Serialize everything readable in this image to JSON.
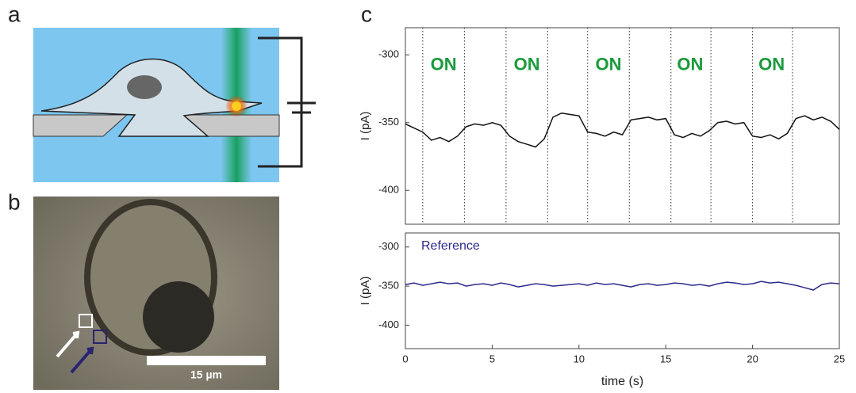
{
  "panel_labels": [
    "a",
    "b",
    "c"
  ],
  "scale_bar": "15 µm",
  "chart_data": [
    {
      "type": "line",
      "ylabel": "I (pA)",
      "xlim": [
        0,
        25
      ],
      "ylim": [
        -425,
        -280
      ],
      "yticks": [
        -400,
        -350,
        -300
      ],
      "x": [
        0,
        0.5,
        1,
        1.5,
        2,
        2.5,
        3,
        3.5,
        4,
        4.5,
        5,
        5.5,
        6,
        6.5,
        7,
        7.5,
        8,
        8.5,
        9,
        9.5,
        10,
        10.5,
        11,
        11.5,
        12,
        12.5,
        13,
        13.5,
        14,
        14.5,
        15,
        15.5,
        16,
        16.5,
        17,
        17.5,
        18,
        18.5,
        19,
        19.5,
        20,
        20.5,
        21,
        21.5,
        22,
        22.5,
        23,
        23.5,
        24,
        24.5,
        25
      ],
      "series": [
        {
          "color": "#111111",
          "values": [
            -351,
            -354,
            -357,
            -363,
            -361,
            -364,
            -360,
            -353,
            -351,
            -352,
            -350,
            -352,
            -360,
            -364,
            -366,
            -368,
            -362,
            -346,
            -343,
            -344,
            -345,
            -357,
            -358,
            -360,
            -357,
            -359,
            -348,
            -347,
            -346,
            -348,
            -347,
            -359,
            -361,
            -358,
            -360,
            -356,
            -350,
            -349,
            -351,
            -350,
            -360,
            -361,
            -359,
            -362,
            -358,
            -347,
            -345,
            -348,
            -346,
            -349,
            -355
          ]
        }
      ],
      "vlines": [
        1,
        3.4,
        5.8,
        8.2,
        10.5,
        12.9,
        15.3,
        17.6,
        20,
        22.3
      ],
      "annotation_color": "#1a9a3c",
      "annotations": [
        {
          "text": "ON",
          "x": 2.2,
          "y": -308
        },
        {
          "text": "ON",
          "x": 7,
          "y": -308
        },
        {
          "text": "ON",
          "x": 11.7,
          "y": -308
        },
        {
          "text": "ON",
          "x": 16.4,
          "y": -308
        },
        {
          "text": "ON",
          "x": 21.1,
          "y": -308
        }
      ]
    },
    {
      "type": "line",
      "ylabel": "I (pA)",
      "xlabel": "time (s)",
      "xlim": [
        0,
        25
      ],
      "ylim": [
        -430,
        -282
      ],
      "yticks": [
        -400,
        -350,
        -300
      ],
      "xticks": [
        0,
        5,
        10,
        15,
        20,
        25
      ],
      "x": [
        0,
        0.5,
        1,
        1.5,
        2,
        2.5,
        3,
        3.5,
        4,
        4.5,
        5,
        5.5,
        6,
        6.5,
        7,
        7.5,
        8,
        8.5,
        9,
        9.5,
        10,
        10.5,
        11,
        11.5,
        12,
        12.5,
        13,
        13.5,
        14,
        14.5,
        15,
        15.5,
        16,
        16.5,
        17,
        17.5,
        18,
        18.5,
        19,
        19.5,
        20,
        20.5,
        21,
        21.5,
        22,
        22.5,
        23,
        23.5,
        24,
        24.5,
        25
      ],
      "series": [
        {
          "name": "Reference",
          "color": "#2e2a8c",
          "values": [
            -348,
            -346,
            -349,
            -347,
            -345,
            -347,
            -346,
            -350,
            -348,
            -347,
            -349,
            -346,
            -348,
            -351,
            -349,
            -347,
            -348,
            -350,
            -349,
            -348,
            -347,
            -349,
            -346,
            -348,
            -347,
            -349,
            -351,
            -348,
            -347,
            -349,
            -348,
            -346,
            -347,
            -349,
            -348,
            -350,
            -347,
            -345,
            -346,
            -348,
            -347,
            -344,
            -346,
            -345,
            -347,
            -349,
            -352,
            -355,
            -348,
            -346,
            -347
          ]
        }
      ]
    }
  ]
}
